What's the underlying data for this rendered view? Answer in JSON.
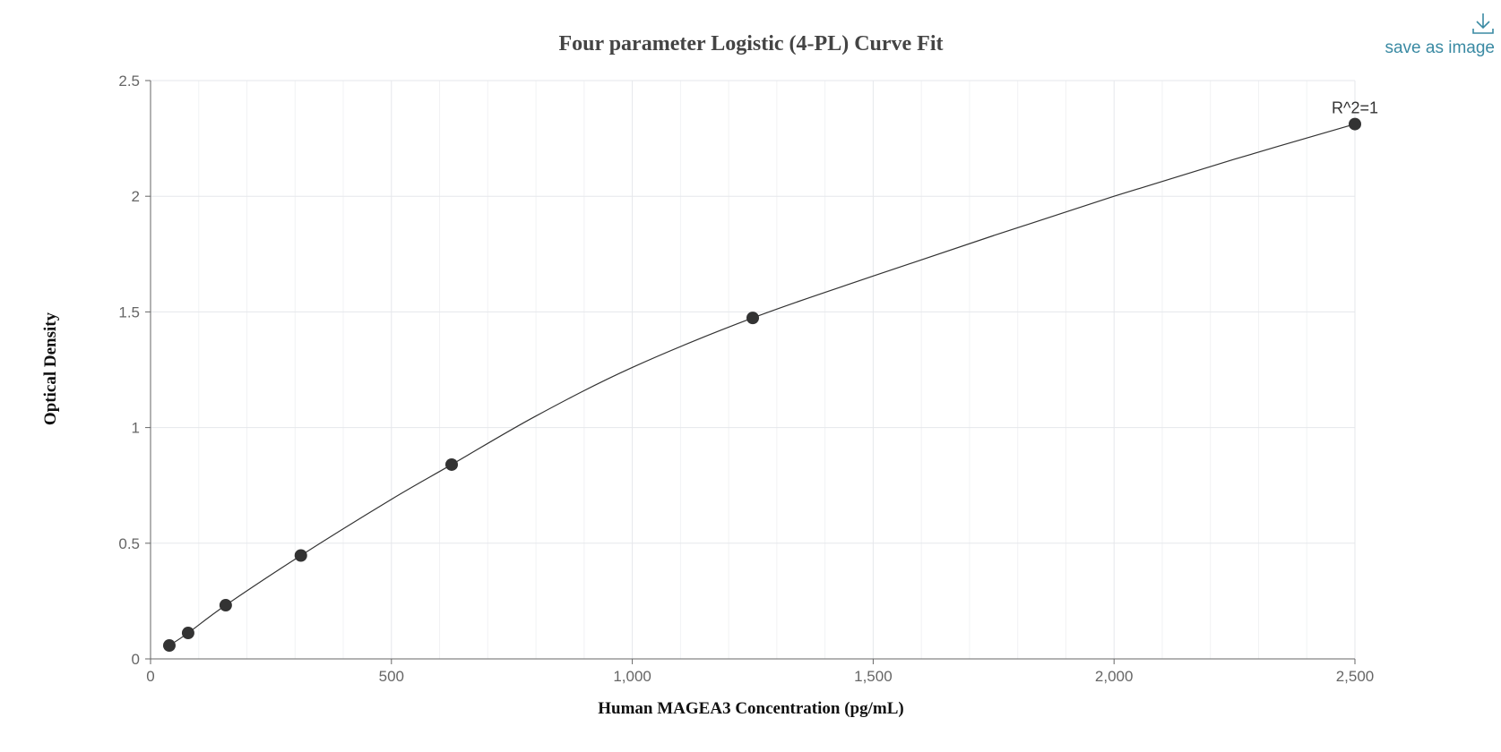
{
  "toolbox": {
    "save_label": "save as image",
    "icon": "download-icon",
    "color": "#3a8aa3"
  },
  "chart_data": {
    "type": "scatter",
    "title": "Four parameter Logistic (4-PL) Curve Fit",
    "xlabel": "Human MAGEA3 Concentration (pg/mL)",
    "ylabel": "Optical Density",
    "xlim": [
      0,
      2500
    ],
    "ylim": [
      0,
      2.5
    ],
    "x_ticks": [
      0,
      500,
      1000,
      1500,
      2000,
      2500
    ],
    "x_tick_labels": [
      "0",
      "500",
      "1,000",
      "1,500",
      "2,000",
      "2,500"
    ],
    "y_ticks": [
      0,
      0.5,
      1,
      1.5,
      2,
      2.5
    ],
    "y_tick_labels": [
      "0",
      "0.5",
      "1",
      "1.5",
      "2",
      "2.5"
    ],
    "grid": true,
    "points": [
      {
        "x": 39,
        "y": 0.058
      },
      {
        "x": 78,
        "y": 0.112
      },
      {
        "x": 156,
        "y": 0.232
      },
      {
        "x": 312,
        "y": 0.447
      },
      {
        "x": 625,
        "y": 0.84
      },
      {
        "x": 1250,
        "y": 1.474
      },
      {
        "x": 2500,
        "y": 2.312
      }
    ],
    "fit_curve": {
      "type": "4PL",
      "x": [
        39,
        78,
        156,
        312,
        500,
        625,
        800,
        1000,
        1250,
        1500,
        1750,
        2000,
        2250,
        2500
      ],
      "y": [
        0.058,
        0.112,
        0.232,
        0.447,
        0.69,
        0.84,
        1.05,
        1.26,
        1.474,
        1.655,
        1.83,
        2.0,
        2.16,
        2.312
      ]
    },
    "annotation": {
      "text": "R^2=1",
      "x": 2500,
      "y": 2.312
    },
    "colors": {
      "point": "#333333",
      "curve": "#333333",
      "grid": "#e5e7eb",
      "axis": "#666666"
    }
  }
}
